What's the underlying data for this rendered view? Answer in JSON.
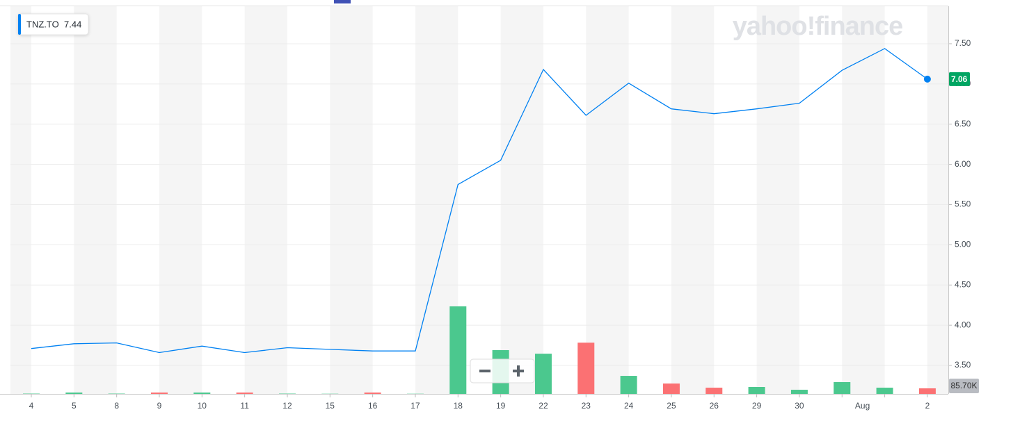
{
  "chart_data": {
    "type": "line",
    "watermark": "yahoo!finance",
    "categories": [
      "4",
      "5",
      "8",
      "9",
      "10",
      "11",
      "12",
      "15",
      "16",
      "17",
      "18",
      "19",
      "22",
      "23",
      "24",
      "25",
      "26",
      "29",
      "30",
      null,
      null,
      "2"
    ],
    "month_label": "Aug",
    "ylim": [
      3.146,
      7.966
    ],
    "yticks": [
      {
        "value": 3.5,
        "label": "3.50"
      },
      {
        "value": 4,
        "label": "4.00"
      },
      {
        "value": 4.5,
        "label": "4.50"
      },
      {
        "value": 5,
        "label": "5.00"
      },
      {
        "value": 5.5,
        "label": "5.50"
      },
      {
        "value": 6,
        "label": "6.00"
      },
      {
        "value": 6.5,
        "label": "6.50"
      },
      {
        "value": 7,
        "label": "7.00"
      },
      {
        "value": 7.5,
        "label": "7.50"
      }
    ],
    "grid": true,
    "series": [
      {
        "name": "TNZ.TO",
        "color": "#0081f2",
        "values": [
          3.71,
          3.77,
          3.78,
          3.66,
          3.74,
          3.66,
          3.72,
          3.7,
          3.68,
          3.68,
          5.75,
          6.05,
          7.18,
          6.61,
          7.01,
          6.69,
          6.63,
          6.69,
          6.76,
          7.17,
          7.44,
          7.06
        ]
      }
    ],
    "last_color": "#00a562",
    "volume": {
      "values": [
        5000,
        21000,
        5000,
        21000,
        21000,
        21000,
        5000,
        3000,
        21000,
        3000,
        1350000,
        675000,
        620000,
        790000,
        278000,
        160000,
        96000,
        107000,
        64000,
        182000,
        96000,
        85700
      ],
      "colors": [
        "#4bc88e",
        "#4bc88e",
        "#4bc88e",
        "#fb7173",
        "#4bc88e",
        "#fb7173",
        "#4bc88e",
        "#4bc88e",
        "#fb7173",
        "#4bc88e",
        "#4bc88e",
        "#4bc88e",
        "#4bc88e",
        "#fb7173",
        "#4bc88e",
        "#fb7173",
        "#fb7173",
        "#4bc88e",
        "#4bc88e",
        "#4bc88e",
        "#4bc88e",
        "#fb7173"
      ],
      "value_labels": [
        null,
        null,
        null,
        null,
        null,
        null,
        null,
        null,
        null,
        null,
        null,
        null,
        null,
        null,
        null,
        null,
        null,
        null,
        null,
        null,
        null,
        "85.70K"
      ]
    }
  }
}
